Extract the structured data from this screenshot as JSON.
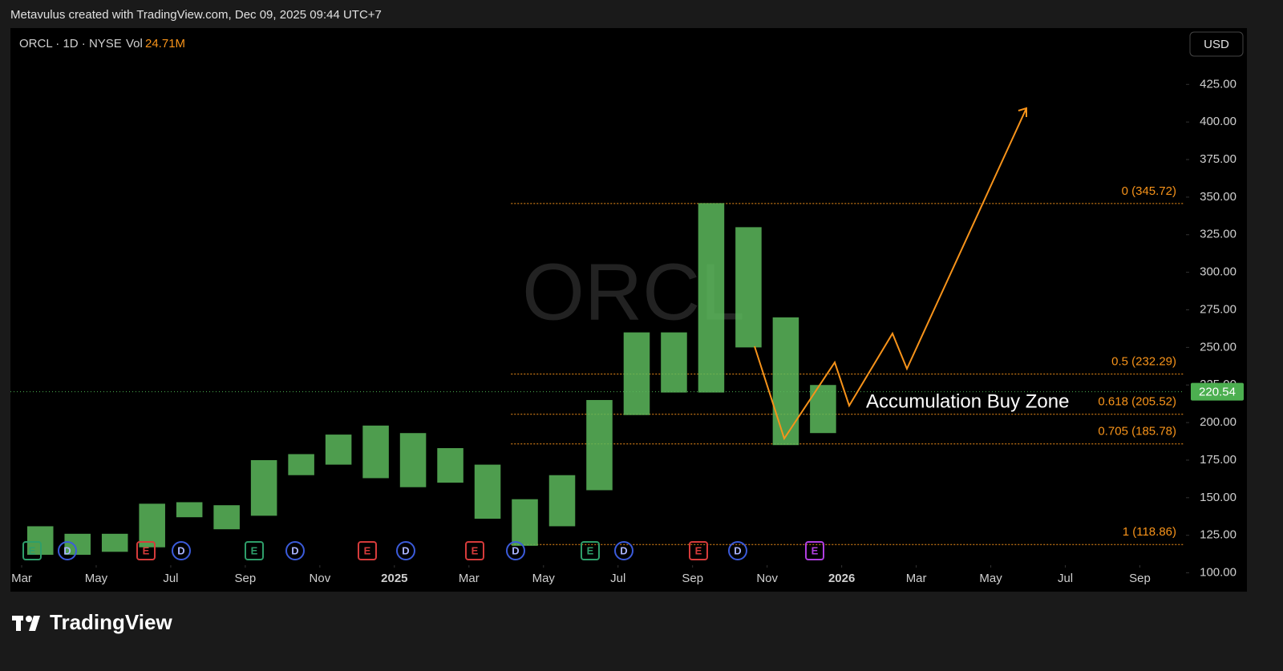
{
  "header": {
    "caption": "Metavulus created with TradingView.com, Dec 09, 2025 09:44 UTC+7"
  },
  "legend": {
    "symbol": "ORCL · 1D · NYSE",
    "volume_label": "Vol",
    "volume": "24.71M"
  },
  "currency": "USD",
  "chart_data": {
    "type": "range",
    "watermark": "ORCL",
    "x": [
      "2024-03",
      "2024-04",
      "2024-05",
      "2024-06",
      "2024-07",
      "2024-08",
      "2024-09",
      "2024-10",
      "2024-11",
      "2024-12",
      "2025-01",
      "2025-02",
      "2025-03",
      "2025-04",
      "2025-05",
      "2025-06",
      "2025-07",
      "2025-08",
      "2025-09",
      "2025-10",
      "2025-11",
      "2025-12"
    ],
    "series": [
      {
        "name": "high",
        "color": "#5cb85c",
        "values": [
          131,
          126,
          126,
          146,
          147,
          145,
          175,
          179,
          192,
          198,
          193,
          183,
          172,
          149,
          165,
          215,
          260,
          260,
          346,
          330,
          270,
          225
        ]
      },
      {
        "name": "low",
        "color": "#5cb85c",
        "values": [
          112,
          112,
          114,
          117,
          137,
          129,
          138,
          165,
          172,
          163,
          157,
          160,
          136,
          118,
          131,
          155,
          205,
          220,
          220,
          250,
          185,
          193
        ]
      }
    ],
    "xlim": [
      "2024-03",
      "2026-10"
    ],
    "xticks": [
      {
        "value": "2024-03",
        "label": "Mar"
      },
      {
        "value": "2024-05",
        "label": "May"
      },
      {
        "value": "2024-07",
        "label": "Jul"
      },
      {
        "value": "2024-09",
        "label": "Sep"
      },
      {
        "value": "2024-11",
        "label": "Nov"
      },
      {
        "value": "2025-01",
        "label": "2025"
      },
      {
        "value": "2025-03",
        "label": "Mar"
      },
      {
        "value": "2025-05",
        "label": "May"
      },
      {
        "value": "2025-07",
        "label": "Jul"
      },
      {
        "value": "2025-09",
        "label": "Sep"
      },
      {
        "value": "2025-11",
        "label": "Nov"
      },
      {
        "value": "2026-01",
        "label": "2026"
      },
      {
        "value": "2026-03",
        "label": "Mar"
      },
      {
        "value": "2026-05",
        "label": "May"
      },
      {
        "value": "2026-07",
        "label": "Jul"
      },
      {
        "value": "2026-09",
        "label": "Sep"
      }
    ],
    "ylim": [
      87.5,
      462.5
    ],
    "yticks": [
      {
        "value": 100,
        "label": "100.00"
      },
      {
        "value": 125,
        "label": "125.00"
      },
      {
        "value": 150,
        "label": "150.00"
      },
      {
        "value": 175,
        "label": "175.00"
      },
      {
        "value": 200,
        "label": "200.00"
      },
      {
        "value": 225,
        "label": "225.00"
      },
      {
        "value": 250,
        "label": "250.00"
      },
      {
        "value": 275,
        "label": "275.00"
      },
      {
        "value": 300,
        "label": "300.00"
      },
      {
        "value": 325,
        "label": "325.00"
      },
      {
        "value": 350,
        "label": "350.00"
      },
      {
        "value": 375,
        "label": "375.00"
      },
      {
        "value": 400,
        "label": "400.00"
      },
      {
        "value": 425,
        "label": "425.00"
      }
    ],
    "fib_color": "#f7931a",
    "fib_levels": [
      {
        "value": 345.72,
        "label": "0 (345.72)"
      },
      {
        "value": 232.29,
        "label": "0.5 (232.29)"
      },
      {
        "value": 205.52,
        "label": "0.618 (205.52)"
      },
      {
        "value": 185.78,
        "label": "0.705 (185.78)"
      },
      {
        "value": 118.86,
        "label": "1 (118.86)"
      }
    ],
    "last_price": 220.54,
    "annotation": "Accumulation Buy Zone",
    "events": [
      "E",
      "D",
      "E",
      "D",
      "E",
      "D",
      "E",
      "D",
      "E",
      "D",
      "E",
      "D",
      "E",
      "D",
      "E"
    ]
  },
  "footer": {
    "brand": "TradingView"
  }
}
